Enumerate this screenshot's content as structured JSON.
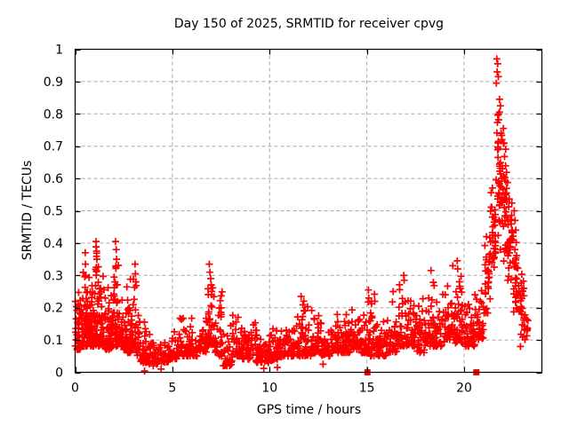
{
  "chart_data": {
    "type": "scatter",
    "title": "Day 150 of 2025, SRMTID for receiver cpvg",
    "xlabel": "GPS time / hours",
    "ylabel": "SRMTID / TECUs",
    "xlim": [
      0,
      24
    ],
    "ylim": [
      0,
      1
    ],
    "xticks": [
      0,
      5,
      10,
      15,
      20
    ],
    "xtick_labels": [
      "0",
      "5",
      "10",
      "15",
      "20"
    ],
    "yticks": [
      0,
      0.1,
      0.2,
      0.3,
      0.4,
      0.5,
      0.6,
      0.7,
      0.8,
      0.9,
      1
    ],
    "ytick_labels": [
      "0",
      "0.1",
      "0.2",
      "0.3",
      "0.4",
      "0.5",
      "0.6",
      "0.7",
      "0.8",
      "0.9",
      "1"
    ],
    "grid": {
      "visible": true,
      "style": "dashed",
      "color": "#a8a8a8",
      "at": "major-ticks"
    },
    "legend": "none",
    "colors": {
      "marker": "#ff0000",
      "frame": "#000000",
      "background": "#ffffff",
      "text": "#000000",
      "grid": "#a8a8a8"
    },
    "seed": 7,
    "series": [
      {
        "name": "SRMTID scatter",
        "marker": "plus",
        "color": "#ff0000",
        "bin_columns": [
          "x_start_hour",
          "x_end_hour",
          "n_points",
          "y_min",
          "y_max",
          "dist_mode"
        ],
        "density_bins": [
          [
            0.0,
            0.3,
            40,
            0.07,
            0.26,
            0
          ],
          [
            0.3,
            0.65,
            50,
            0.08,
            0.34,
            0
          ],
          [
            0.65,
            0.95,
            48,
            0.08,
            0.33,
            0
          ],
          [
            0.95,
            1.25,
            45,
            0.08,
            0.41,
            0
          ],
          [
            1.25,
            1.55,
            42,
            0.08,
            0.31,
            0
          ],
          [
            1.55,
            1.9,
            45,
            0.07,
            0.29,
            0
          ],
          [
            1.9,
            2.25,
            46,
            0.08,
            0.41,
            0
          ],
          [
            2.25,
            2.65,
            42,
            0.07,
            0.28,
            0
          ],
          [
            2.65,
            3.05,
            42,
            0.06,
            0.34,
            0
          ],
          [
            3.05,
            3.35,
            36,
            0.05,
            0.31,
            0
          ],
          [
            3.35,
            3.75,
            34,
            0.03,
            0.21,
            0
          ],
          [
            3.75,
            4.25,
            30,
            0.02,
            0.16,
            0
          ],
          [
            4.25,
            4.8,
            30,
            0.03,
            0.13,
            0
          ],
          [
            4.8,
            5.3,
            30,
            0.04,
            0.17,
            0
          ],
          [
            5.3,
            5.85,
            32,
            0.05,
            0.19,
            0
          ],
          [
            5.85,
            6.35,
            32,
            0.05,
            0.17,
            0
          ],
          [
            6.35,
            6.75,
            30,
            0.06,
            0.21,
            0
          ],
          [
            6.75,
            7.2,
            42,
            0.08,
            0.34,
            0
          ],
          [
            7.2,
            7.6,
            34,
            0.05,
            0.27,
            0
          ],
          [
            7.6,
            8.1,
            30,
            0.02,
            0.19,
            0
          ],
          [
            8.1,
            8.6,
            36,
            0.05,
            0.23,
            0
          ],
          [
            8.6,
            9.15,
            36,
            0.04,
            0.19,
            0
          ],
          [
            9.15,
            9.65,
            34,
            0.03,
            0.18,
            0
          ],
          [
            9.65,
            10.15,
            34,
            0.03,
            0.16,
            0
          ],
          [
            10.15,
            10.65,
            34,
            0.04,
            0.16,
            0
          ],
          [
            10.65,
            11.15,
            34,
            0.05,
            0.18,
            0
          ],
          [
            11.15,
            11.65,
            34,
            0.05,
            0.2,
            0
          ],
          [
            11.65,
            12.15,
            38,
            0.05,
            0.24,
            0
          ],
          [
            12.15,
            12.65,
            38,
            0.06,
            0.21,
            0
          ],
          [
            12.65,
            13.15,
            36,
            0.05,
            0.19,
            0
          ],
          [
            13.15,
            13.65,
            36,
            0.06,
            0.2,
            0
          ],
          [
            13.65,
            14.15,
            36,
            0.06,
            0.21,
            0
          ],
          [
            14.15,
            14.65,
            36,
            0.07,
            0.21,
            0
          ],
          [
            14.65,
            15.15,
            36,
            0.06,
            0.23,
            0
          ],
          [
            15.15,
            15.55,
            34,
            0.05,
            0.27,
            0
          ],
          [
            15.55,
            16.05,
            34,
            0.05,
            0.21,
            0
          ],
          [
            16.05,
            16.55,
            36,
            0.06,
            0.25,
            0
          ],
          [
            16.55,
            17.05,
            38,
            0.08,
            0.31,
            0
          ],
          [
            17.05,
            17.55,
            38,
            0.08,
            0.3,
            0
          ],
          [
            17.55,
            18.05,
            36,
            0.06,
            0.27,
            0
          ],
          [
            18.05,
            18.55,
            38,
            0.08,
            0.32,
            0
          ],
          [
            18.55,
            19.05,
            36,
            0.08,
            0.27,
            0
          ],
          [
            19.05,
            19.55,
            40,
            0.1,
            0.34,
            0
          ],
          [
            19.55,
            20.05,
            40,
            0.09,
            0.35,
            0
          ],
          [
            20.05,
            20.55,
            36,
            0.08,
            0.23,
            0
          ],
          [
            20.55,
            21.05,
            34,
            0.1,
            0.31,
            0
          ],
          [
            21.05,
            21.35,
            28,
            0.15,
            0.43,
            1
          ],
          [
            21.35,
            21.65,
            32,
            0.25,
            0.62,
            1
          ],
          [
            21.65,
            21.95,
            38,
            0.3,
            0.9,
            1
          ],
          [
            21.95,
            22.25,
            38,
            0.28,
            0.73,
            1
          ],
          [
            22.25,
            22.55,
            32,
            0.22,
            0.56,
            1
          ],
          [
            22.55,
            22.85,
            28,
            0.14,
            0.42,
            1
          ],
          [
            22.85,
            23.1,
            22,
            0.1,
            0.36,
            1
          ],
          [
            23.1,
            23.3,
            12,
            0.08,
            0.22,
            1
          ]
        ],
        "outlier_points": [
          [
            21.68,
            0.97
          ],
          [
            21.73,
            0.955
          ],
          [
            21.7,
            0.93
          ],
          [
            21.76,
            0.915
          ],
          [
            21.66,
            0.895
          ],
          [
            21.82,
            0.845
          ],
          [
            21.87,
            0.825
          ],
          [
            21.78,
            0.8
          ],
          [
            22.02,
            0.755
          ],
          [
            21.9,
            0.74
          ],
          [
            21.95,
            0.72
          ],
          [
            22.05,
            0.71
          ],
          [
            0.52,
            0.37
          ],
          [
            0.53,
            0.335
          ],
          [
            0.55,
            0.3
          ],
          [
            1.08,
            0.405
          ],
          [
            1.1,
            0.375
          ],
          [
            1.12,
            0.35
          ],
          [
            1.09,
            0.325
          ],
          [
            2.08,
            0.405
          ],
          [
            2.11,
            0.38
          ],
          [
            2.13,
            0.35
          ],
          [
            2.1,
            0.325
          ],
          [
            3.08,
            0.335
          ],
          [
            3.1,
            0.305
          ],
          [
            3.12,
            0.28
          ],
          [
            6.9,
            0.335
          ],
          [
            6.93,
            0.31
          ],
          [
            6.97,
            0.29
          ],
          [
            7.0,
            0.27
          ],
          [
            11.62,
            0.235
          ],
          [
            15.08,
            0.255
          ],
          [
            15.1,
            0.23
          ],
          [
            16.35,
            0.25
          ],
          [
            16.9,
            0.3
          ],
          [
            16.92,
            0.285
          ],
          [
            18.3,
            0.315
          ],
          [
            19.42,
            0.33
          ],
          [
            19.65,
            0.345
          ],
          [
            19.67,
            0.32
          ],
          [
            21.15,
            0.42
          ],
          [
            22.58,
            0.5
          ],
          [
            22.62,
            0.47
          ],
          [
            22.66,
            0.44
          ],
          [
            3.57,
            0.004
          ],
          [
            4.42,
            0.01
          ],
          [
            7.8,
            0.02
          ],
          [
            9.7,
            0.012
          ],
          [
            10.4,
            0.015
          ],
          [
            12.75,
            0.025
          ],
          [
            22.9,
            0.08
          ]
        ]
      },
      {
        "name": "zero flags",
        "marker": "filled-square",
        "color": "#ff0000",
        "points": [
          [
            15.03,
            0
          ],
          [
            20.63,
            0
          ]
        ]
      }
    ]
  }
}
